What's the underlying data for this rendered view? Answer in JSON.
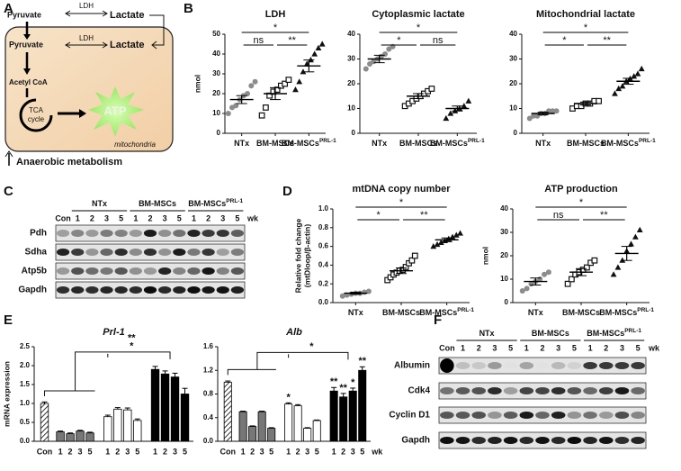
{
  "panel_letters": [
    "A",
    "B",
    "C",
    "D",
    "E",
    "F"
  ],
  "diagram": {
    "top_pyruvate": "Pyruvate",
    "top_ldh": "LDH",
    "top_lactate": "Lactate",
    "pyruvate": "Pyruvate",
    "ldh": "LDH",
    "lactate": "Lactate",
    "acetyl_coa": "Acetyl CoA",
    "tca": "TCA",
    "cycle": "cycle",
    "atp": "ATP",
    "compartment": "mitochondria",
    "footer": "Anaerobic metabolism"
  },
  "blots": [
    {
      "control": "Con",
      "groups": [
        {
          "name": "NTx"
        },
        {
          "name": "BM-MSCs"
        },
        {
          "name": "BM-MSCs",
          "name_sup": "PRL-1"
        }
      ],
      "lane_labels": [
        "1",
        "2",
        "3",
        "5"
      ],
      "unit": "wk",
      "rows": [
        "Pdh",
        "Sdha",
        "Atp5b",
        "Gapdh"
      ]
    },
    {
      "control": "Con",
      "groups": [
        {
          "name": "NTx"
        },
        {
          "name": "BM-MSCs"
        },
        {
          "name": "BM-MSCs",
          "name_sup": "PRL-1"
        }
      ],
      "lane_labels": [
        "1",
        "2",
        "3",
        "5"
      ],
      "unit": "wk",
      "rows": [
        "Albumin",
        "Cdk4",
        "Cyclin D1",
        "Gapdh"
      ]
    }
  ],
  "chart_data": [
    {
      "type": "dot",
      "title": "LDH",
      "y_label": "nmol",
      "ylim": [
        0,
        50
      ],
      "yticks": [
        0,
        10,
        20,
        30,
        40,
        50
      ],
      "groups": [
        {
          "name": "NTx",
          "marker": "circle",
          "color": "#8c8c8c",
          "values": [
            10,
            13,
            14,
            17,
            19,
            20,
            24,
            26
          ],
          "mean": 17,
          "sem": 2
        },
        {
          "name": "BM-MSCs",
          "marker": "square",
          "color": "#111111",
          "values": [
            9,
            13,
            19,
            21,
            22,
            24,
            25,
            27
          ],
          "mean": 20,
          "sem": 3
        },
        {
          "name": "BM-MSCs",
          "name_sup": "PRL-1",
          "marker": "triangle",
          "color": "#111111",
          "values": [
            22,
            26,
            31,
            35,
            37,
            40,
            43,
            45
          ],
          "mean": 34,
          "sem": 3
        }
      ],
      "significance": [
        {
          "pair": [
            0,
            1
          ],
          "label": "ns"
        },
        {
          "pair": [
            1,
            2
          ],
          "label": "**"
        },
        {
          "pair": [
            0,
            2
          ],
          "label": "*"
        }
      ]
    },
    {
      "type": "dot",
      "title": "Cytoplasmic lactate",
      "ylim": [
        0,
        40
      ],
      "yticks": [
        0,
        10,
        20,
        30,
        40
      ],
      "groups": [
        {
          "name": "NTx",
          "marker": "circle",
          "color": "#8c8c8c",
          "values": [
            26,
            28,
            29,
            30,
            31,
            32,
            34,
            35
          ],
          "mean": 30,
          "sem": 1.5
        },
        {
          "name": "BM-MSCs",
          "marker": "square",
          "color": "#111111",
          "values": [
            11,
            12,
            13,
            14,
            15,
            16,
            17,
            18
          ],
          "mean": 15,
          "sem": 1
        },
        {
          "name": "BM-MSCs",
          "name_sup": "PRL-1",
          "marker": "triangle",
          "color": "#111111",
          "values": [
            6,
            8,
            9,
            10,
            11,
            13
          ],
          "mean": 10,
          "sem": 1
        }
      ],
      "significance": [
        {
          "pair": [
            0,
            1
          ],
          "label": "*"
        },
        {
          "pair": [
            1,
            2
          ],
          "label": "ns"
        },
        {
          "pair": [
            0,
            2
          ],
          "label": "*"
        }
      ]
    },
    {
      "type": "dot",
      "title": "Mitochondrial lactate",
      "ylim": [
        0,
        40
      ],
      "yticks": [
        0,
        10,
        20,
        30,
        40
      ],
      "groups": [
        {
          "name": "NTx",
          "marker": "circle",
          "color": "#8c8c8c",
          "values": [
            6,
            7,
            7,
            8,
            8,
            9,
            9,
            9
          ],
          "mean": 8,
          "sem": 0.5
        },
        {
          "name": "BM-MSCs",
          "marker": "square",
          "color": "#111111",
          "values": [
            10,
            11,
            11,
            12,
            12,
            13,
            13
          ],
          "mean": 12,
          "sem": 0.6
        },
        {
          "name": "BM-MSCs",
          "name_sup": "PRL-1",
          "marker": "triangle",
          "color": "#111111",
          "values": [
            16,
            18,
            19,
            21,
            22,
            23,
            24,
            26
          ],
          "mean": 21,
          "sem": 1.2
        }
      ],
      "significance": [
        {
          "pair": [
            0,
            1
          ],
          "label": "*"
        },
        {
          "pair": [
            1,
            2
          ],
          "label": "**"
        },
        {
          "pair": [
            0,
            2
          ],
          "label": "*"
        }
      ]
    },
    {
      "type": "dot",
      "title": "mtDNA copy number",
      "y_label": [
        "Relative fold change",
        "(mtDloop/β-actin)"
      ],
      "ylim": [
        0,
        1
      ],
      "yticks": [
        {
          "value": 0,
          "label": "0.0"
        },
        0.2,
        0.4,
        0.6,
        0.8,
        {
          "value": 1,
          "label": "1.0"
        }
      ],
      "groups": [
        {
          "name": "NTx",
          "marker": "circle",
          "color": "#8c8c8c",
          "values": [
            0.07,
            0.08,
            0.09,
            0.1,
            0.1,
            0.11,
            0.12
          ],
          "mean": 0.1,
          "sem": 0.01
        },
        {
          "name": "BM-MSCs",
          "marker": "square",
          "color": "#111111",
          "values": [
            0.24,
            0.27,
            0.3,
            0.32,
            0.34,
            0.35,
            0.38,
            0.42,
            0.45,
            0.5
          ],
          "mean": 0.34,
          "sem": 0.03
        },
        {
          "name": "BM-MSCs",
          "name_sup": "PRL-1",
          "marker": "triangle",
          "color": "#111111",
          "values": [
            0.6,
            0.62,
            0.64,
            0.66,
            0.68,
            0.7,
            0.72,
            0.74
          ],
          "mean": 0.67,
          "sem": 0.02
        }
      ],
      "significance": [
        {
          "pair": [
            0,
            1
          ],
          "label": "*"
        },
        {
          "pair": [
            1,
            2
          ],
          "label": "**"
        },
        {
          "pair": [
            0,
            2
          ],
          "label": "*"
        }
      ]
    },
    {
      "type": "dot",
      "title": "ATP production",
      "y_label": "nmol",
      "ylim": [
        0,
        40
      ],
      "yticks": [
        0,
        10,
        20,
        30,
        40
      ],
      "groups": [
        {
          "name": "NTx",
          "marker": "circle",
          "color": "#8c8c8c",
          "values": [
            5,
            6,
            8,
            9,
            10,
            12,
            13
          ],
          "mean": 9,
          "sem": 1.5
        },
        {
          "name": "BM-MSCs",
          "marker": "square",
          "color": "#111111",
          "values": [
            8,
            10,
            12,
            13,
            14,
            15,
            17,
            18
          ],
          "mean": 13,
          "sem": 1.5
        },
        {
          "name": "BM-MSCs",
          "name_sup": "PRL-1",
          "marker": "triangle",
          "color": "#111111",
          "values": [
            12,
            15,
            18,
            22,
            25,
            28,
            31
          ],
          "mean": 21,
          "sem": 3
        }
      ],
      "significance": [
        {
          "pair": [
            0,
            1
          ],
          "label": "ns"
        },
        {
          "pair": [
            1,
            2
          ],
          "label": "**"
        },
        {
          "pair": [
            0,
            2
          ],
          "label": "*"
        }
      ]
    },
    {
      "type": "bar",
      "title": "Prl-1",
      "y_label": "mRNA expression",
      "ylim": [
        0,
        2.5
      ],
      "yticks": [
        {
          "value": 0,
          "label": "0.0"
        },
        0.5,
        {
          "value": 1,
          "label": "1.0"
        },
        1.5,
        {
          "value": 2,
          "label": "2.0"
        },
        2.5
      ],
      "categories": [
        "Con",
        "1",
        "2",
        "3",
        "5",
        "1",
        "2",
        "3",
        "5",
        "1",
        "2",
        "3",
        "5"
      ],
      "values": [
        1.0,
        0.25,
        0.2,
        0.27,
        0.22,
        0.65,
        0.85,
        0.83,
        0.55,
        1.9,
        1.78,
        1.7,
        1.25
      ],
      "errors": [
        0.04,
        0.02,
        0.02,
        0.02,
        0.02,
        0.04,
        0.04,
        0.05,
        0.04,
        0.08,
        0.08,
        0.1,
        0.15
      ],
      "colors": [
        "hatched",
        "#777777",
        "#777777",
        "#777777",
        "#777777",
        "#ffffff",
        "#ffffff",
        "#ffffff",
        "#ffffff",
        "#000000",
        "#000000",
        "#000000",
        "#000000"
      ],
      "bracket_labels": [
        "**",
        "*"
      ]
    },
    {
      "type": "bar",
      "title": "Alb",
      "ylim": [
        0,
        1.6
      ],
      "yticks": [
        {
          "value": 0,
          "label": "0.0"
        },
        0.4,
        0.8,
        1.2,
        1.6
      ],
      "categories": [
        "Con",
        "1",
        "2",
        "3",
        "5",
        "1",
        "2",
        "3",
        "5",
        "1",
        "2",
        "3",
        "5"
      ],
      "values": [
        1.0,
        0.5,
        0.25,
        0.5,
        0.22,
        0.63,
        0.6,
        0.22,
        0.35,
        0.85,
        0.75,
        0.85,
        1.2
      ],
      "errors": [
        0.02,
        0.01,
        0.01,
        0.01,
        0.01,
        0.02,
        0.02,
        0.01,
        0.01,
        0.06,
        0.06,
        0.05,
        0.06
      ],
      "colors": [
        "hatched",
        "#777777",
        "#777777",
        "#777777",
        "#777777",
        "#ffffff",
        "#ffffff",
        "#ffffff",
        "#ffffff",
        "#000000",
        "#000000",
        "#000000",
        "#000000"
      ],
      "bar_labels": [
        null,
        null,
        null,
        null,
        null,
        "*",
        null,
        null,
        null,
        "**",
        "**",
        "*",
        "**"
      ],
      "bracket_labels": [
        "*"
      ],
      "x_unit": "wk"
    }
  ]
}
